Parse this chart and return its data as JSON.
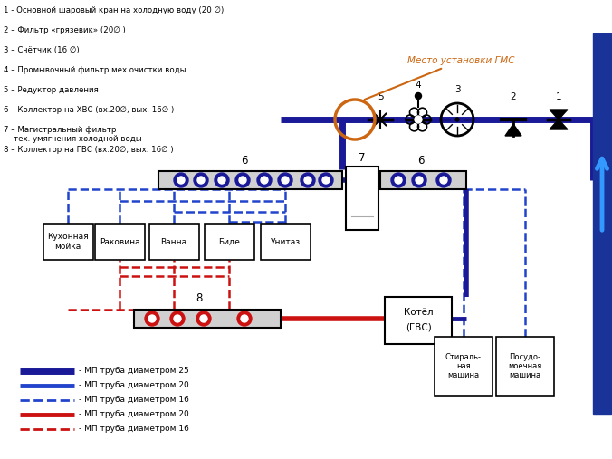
{
  "bg_color": "#ffffff",
  "legend_items": [
    {
      "label": "- МП труба диаметром 25",
      "color": "#1a1a99",
      "lw": 5,
      "ls": "solid"
    },
    {
      "label": "- МП труба диаметром 20",
      "color": "#2244cc",
      "lw": 3.5,
      "ls": "solid"
    },
    {
      "label": "- МП труба диаметром 16",
      "color": "#2244cc",
      "lw": 2,
      "ls": "dashed"
    },
    {
      "label": "- МП труба диаметром 20",
      "color": "#cc1111",
      "lw": 3.5,
      "ls": "solid"
    },
    {
      "label": "- МП труба диаметром 16",
      "color": "#cc1111",
      "lw": 2,
      "ls": "dashed"
    }
  ],
  "items_text": [
    "1 - Основной шаровый кран на холодную воду (20 ∅)",
    "2 – Фильтр «грязевик» (20∅ )",
    "3 – Счётчик (16 ∅)",
    "4 – Промывочный фильтр мех.очистки воды",
    "5 – Редуктор давления",
    "6 – Коллектор на ХВС (вх.20∅, вых. 16∅ )",
    "7 – Магистральный фильтр\n    тех. умягчения холодной воды",
    "8 – Коллектор на ГВС (вх.20∅, вых. 16∅ )"
  ],
  "mesto_text": "Место установки ГМС",
  "appliances": [
    "Кухонная\nмойка",
    "Раковина",
    "Ванна",
    "Биде",
    "Унитаз"
  ],
  "blue_dark": "#1a1a99",
  "blue_med": "#2244cc",
  "red_col": "#cc1111",
  "orange_col": "#cc6611",
  "wall_color": "#1a3399",
  "arrow_color": "#3399ff"
}
